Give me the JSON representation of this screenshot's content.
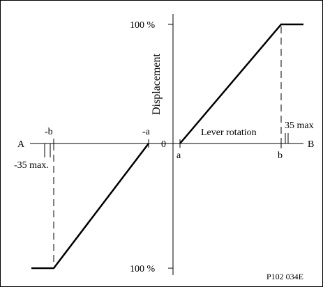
{
  "figure": {
    "y_axis_label": "Displacement",
    "x_axis_label": "Lever rotation",
    "direction_left": "A",
    "direction_right": "B",
    "origin_label": "0",
    "top_limit_label": "100 %",
    "bottom_limit_label": "100 %",
    "point_neg_b": "-b",
    "point_neg_a": "-a",
    "point_a": "a",
    "point_b": "b",
    "neg_limit_label": "-35  max.",
    "pos_limit_label": "35  max",
    "figure_code": "P102 034E"
  },
  "colors": {
    "line": "#000000",
    "background": "#ffffff"
  }
}
